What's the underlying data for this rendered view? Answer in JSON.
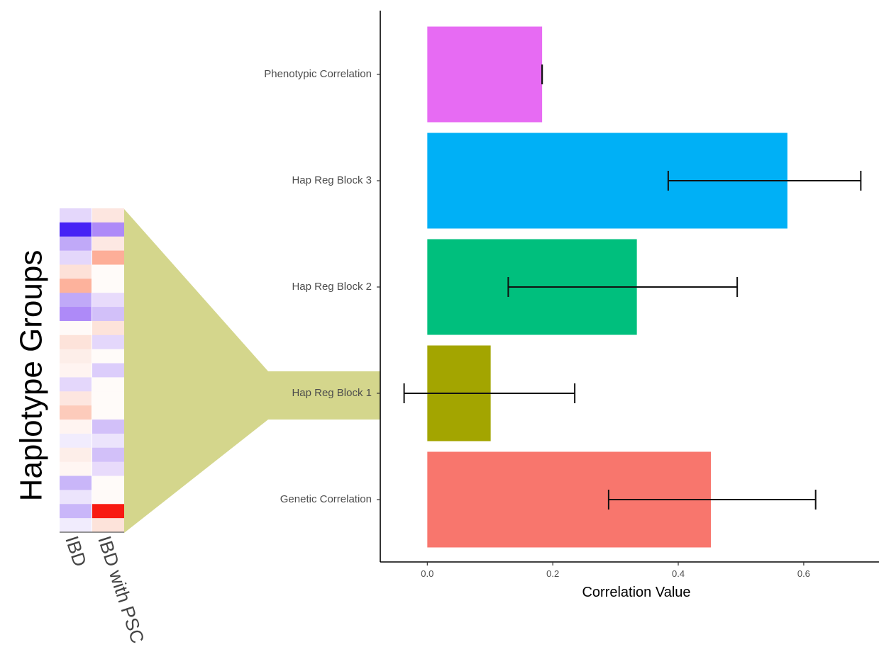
{
  "figure": {
    "left_label": "Haplotype Groups"
  },
  "heatmap": {
    "columns": [
      "IBD",
      "IBD with PSC"
    ],
    "rows": [
      [
        "#e4d7fb",
        "#fde6e0"
      ],
      [
        "#4622f5",
        "#ae8af8"
      ],
      [
        "#c0a9f8",
        "#fde8e3"
      ],
      [
        "#e4d7fb",
        "#fdae98"
      ],
      [
        "#fde1d8",
        "#fffbf9"
      ],
      [
        "#fdb29c",
        "#fffbf9"
      ],
      [
        "#c0a9f8",
        "#e8dbfb"
      ],
      [
        "#ae8af8",
        "#d2c0f9"
      ],
      [
        "#fffaf8",
        "#fde3da"
      ],
      [
        "#fde3da",
        "#e4d7fb"
      ],
      [
        "#fdeee9",
        "#fffbf9"
      ],
      [
        "#fff4f1",
        "#dccdfb"
      ],
      [
        "#e4d7fb",
        "#fffbf9"
      ],
      [
        "#fde6e0",
        "#fffbf9"
      ],
      [
        "#fdcbbb",
        "#fffbf9"
      ],
      [
        "#fff4f1",
        "#d2c0f9"
      ],
      [
        "#f1ecfd",
        "#ece4fc"
      ],
      [
        "#fdeee9",
        "#d2c0f9"
      ],
      [
        "#fff6f3",
        "#e8dbfb"
      ],
      [
        "#c9b6f9",
        "#fffbf9"
      ],
      [
        "#ece4fc",
        "#fffaf8"
      ],
      [
        "#c9b6f9",
        "#f81a12"
      ],
      [
        "#f1ecfd",
        "#fde3da"
      ]
    ]
  },
  "callout": {
    "color": "#d4d68c"
  },
  "chart_data": {
    "type": "bar",
    "orientation": "horizontal",
    "categories": [
      "Phenotypic Correlation",
      "Hap Reg Block 3",
      "Hap Reg Block 2",
      "Hap Reg Block 1",
      "Genetic Correlation"
    ],
    "values": [
      0.183,
      0.574,
      0.334,
      0.101,
      0.452
    ],
    "error_low": [
      0.183,
      0.384,
      0.129,
      -0.037,
      0.289
    ],
    "error_high": [
      0.183,
      0.691,
      0.494,
      0.235,
      0.619
    ],
    "colors": [
      "#e76bf3",
      "#00b0f6",
      "#00bf7d",
      "#a3a500",
      "#f8766d"
    ],
    "xlabel": "Correlation Value",
    "ylabel": "",
    "xlim": [
      -0.075,
      0.72
    ],
    "xticks": [
      0.0,
      0.2,
      0.4,
      0.6
    ],
    "xtick_labels": [
      "0.0",
      "0.2",
      "0.4",
      "0.6"
    ],
    "grid": false,
    "legend": "none"
  }
}
